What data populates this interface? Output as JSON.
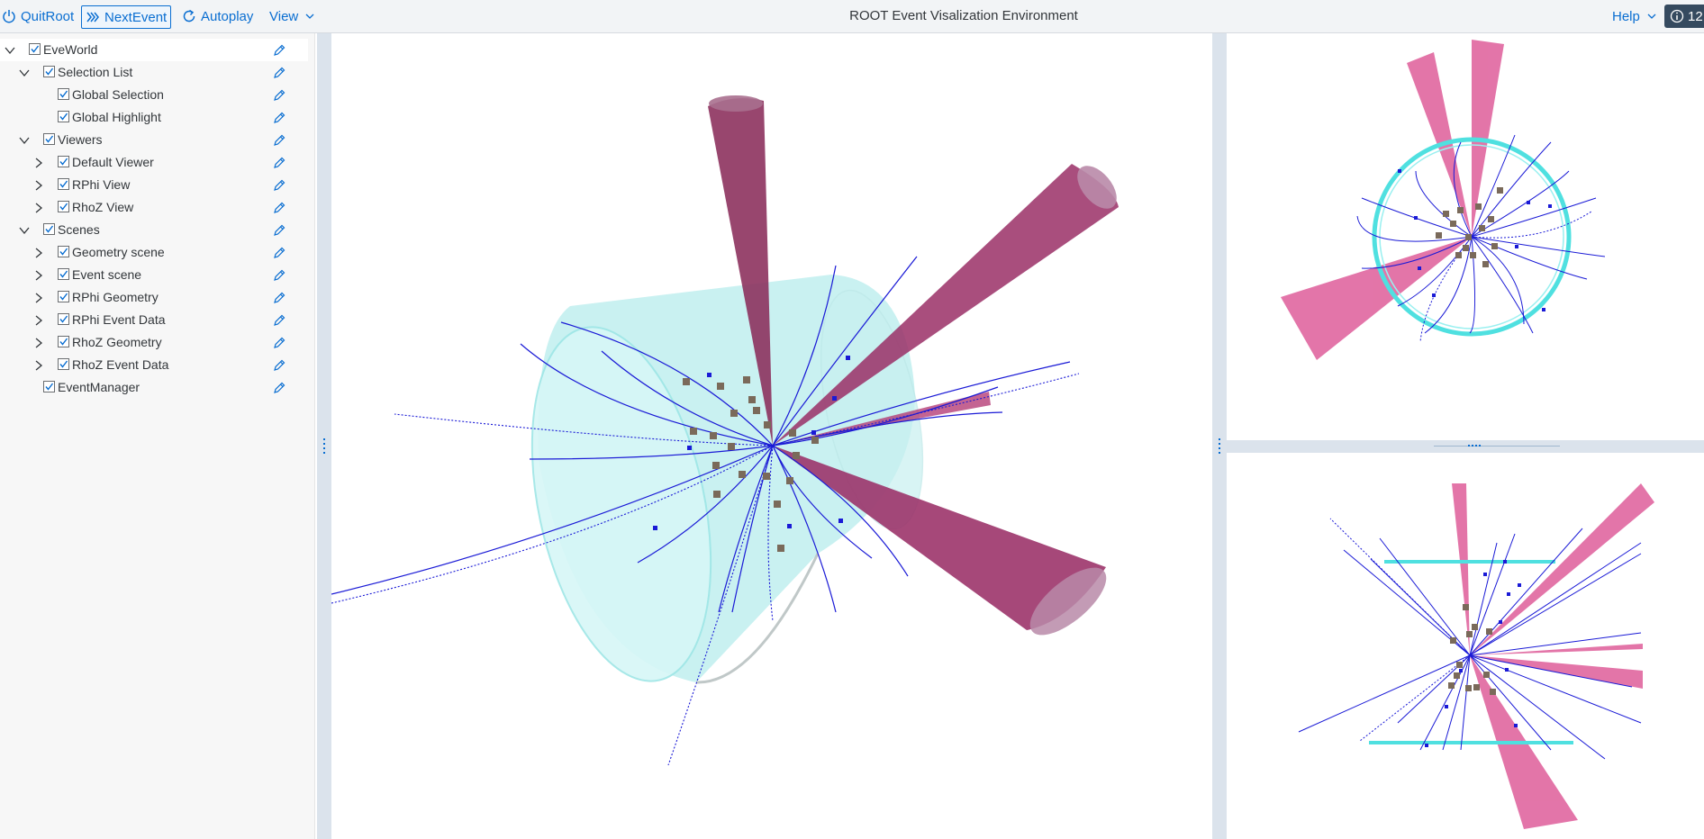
{
  "toolbar": {
    "quit_label": "QuitRoot",
    "next_label": "NextEvent",
    "autoplay_label": "Autoplay",
    "view_label": "View",
    "title": "ROOT Event Visalization Environment",
    "help_label": "Help",
    "info_badge": "12"
  },
  "tree": {
    "items": [
      {
        "label": "EveWorld"
      },
      {
        "label": "Selection List"
      },
      {
        "label": "Global Selection"
      },
      {
        "label": "Global Highlight"
      },
      {
        "label": "Viewers"
      },
      {
        "label": "Default Viewer"
      },
      {
        "label": "RPhi View"
      },
      {
        "label": "RhoZ View"
      },
      {
        "label": "Scenes"
      },
      {
        "label": "Geometry scene"
      },
      {
        "label": "Event scene"
      },
      {
        "label": "RPhi Geometry"
      },
      {
        "label": "RPhi Event Data"
      },
      {
        "label": "RhoZ Geometry"
      },
      {
        "label": "RhoZ Event Data"
      },
      {
        "label": "EventManager"
      }
    ]
  },
  "colors": {
    "accent": "#0a6ed1",
    "track": "#1a1ad6",
    "jet": "#b0306e",
    "jet_light": "#e26ea4",
    "detector": "#a8f0f0",
    "hit": "#7a6a5a"
  },
  "icons": {
    "quit": "power-icon",
    "next": "fast-forward-icon",
    "autoplay": "refresh-icon",
    "edit": "pencil-icon",
    "info": "info-icon"
  }
}
